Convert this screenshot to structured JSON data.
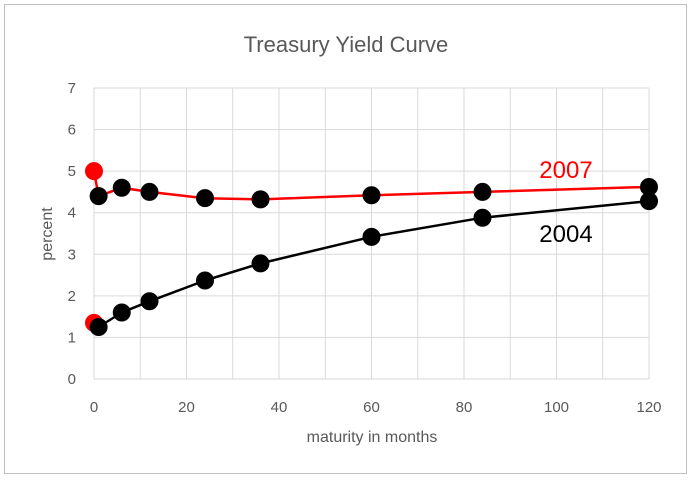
{
  "chart_data": {
    "type": "line",
    "title": "Treasury Yield Curve",
    "xlabel": "maturity in months",
    "ylabel": "percent",
    "xlim": [
      0,
      120
    ],
    "ylim": [
      0,
      7
    ],
    "x_ticks": [
      "0",
      "20",
      "40",
      "60",
      "80",
      "100",
      "120"
    ],
    "y_ticks": [
      "0",
      "1",
      "2",
      "3",
      "4",
      "5",
      "6",
      "7"
    ],
    "grid": true,
    "series": [
      {
        "name": "2007",
        "color": "#ff0000",
        "points": [
          [
            0,
            5.0
          ],
          [
            1,
            4.4
          ],
          [
            6,
            4.6
          ],
          [
            12,
            4.5
          ],
          [
            24,
            4.35
          ],
          [
            36,
            4.32
          ],
          [
            60,
            4.42
          ],
          [
            84,
            4.5
          ],
          [
            120,
            4.62
          ]
        ],
        "marker_colors": [
          "#ff0000",
          "#000000",
          "#000000",
          "#000000",
          "#000000",
          "#000000",
          "#000000",
          "#000000",
          "#000000"
        ]
      },
      {
        "name": "2004",
        "color": "#000000",
        "points": [
          [
            0,
            1.35
          ],
          [
            1,
            1.25
          ],
          [
            6,
            1.6
          ],
          [
            12,
            1.87
          ],
          [
            24,
            2.37
          ],
          [
            36,
            2.78
          ],
          [
            60,
            3.42
          ],
          [
            84,
            3.88
          ],
          [
            120,
            4.28
          ]
        ],
        "marker_colors": [
          "#ff0000",
          "#000000",
          "#000000",
          "#000000",
          "#000000",
          "#000000",
          "#000000",
          "#000000",
          "#000000"
        ]
      }
    ]
  }
}
